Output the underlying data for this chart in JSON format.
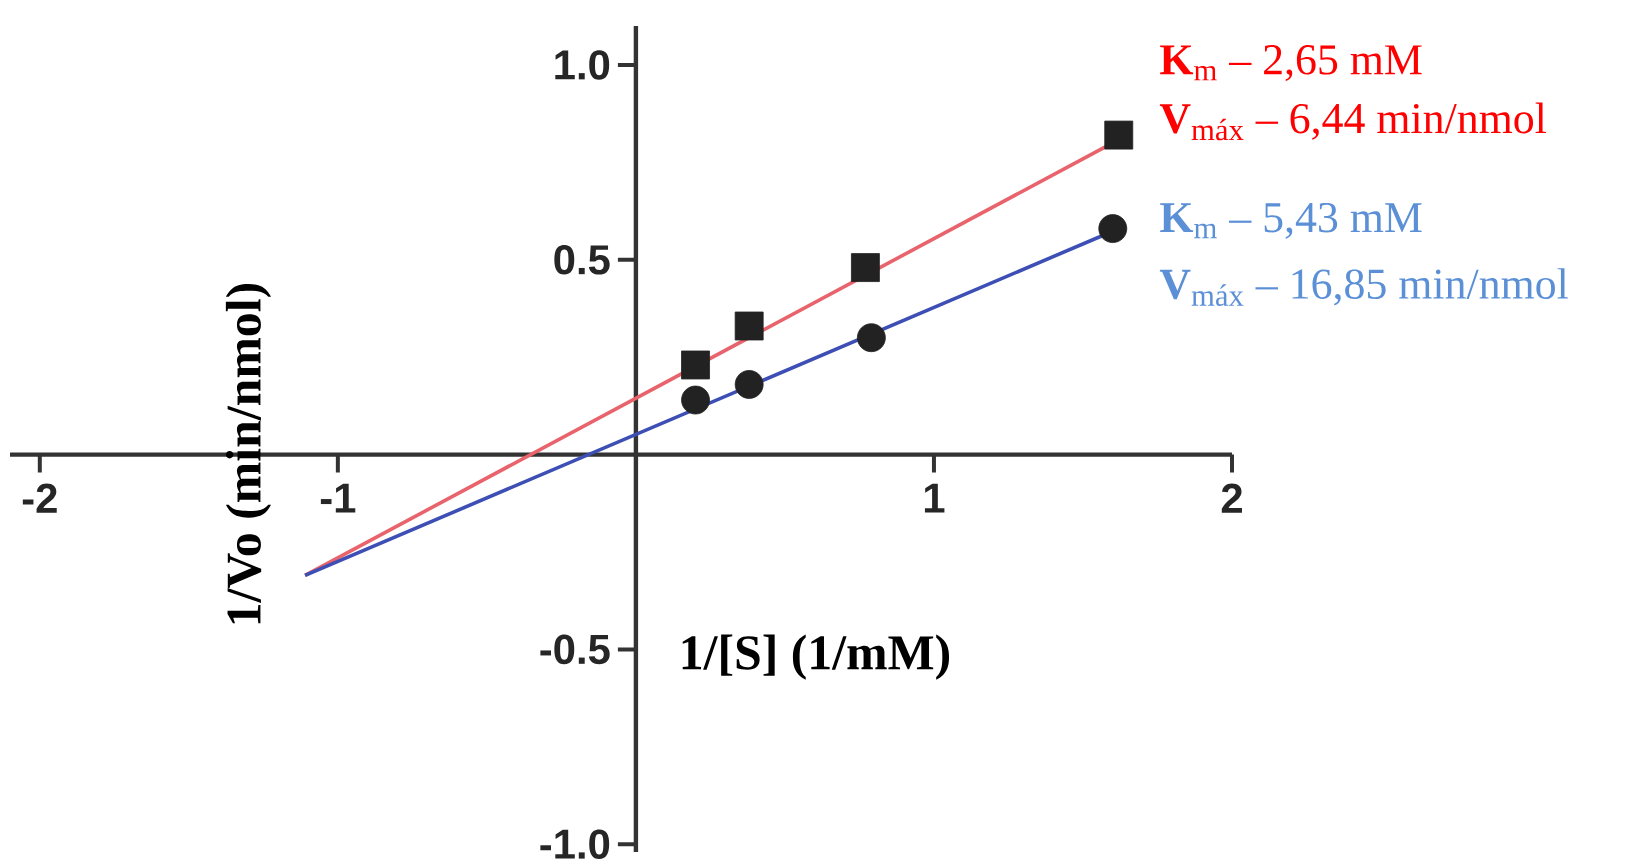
{
  "chart_data": {
    "type": "scatter",
    "xlabel": "1/[S] (1/mM)",
    "ylabel": "1/Vo (min/nmol)",
    "xlim": [
      -2.1,
      2.0
    ],
    "ylim": [
      -1.02,
      1.1
    ],
    "xticks": [
      -2,
      -1,
      1,
      2
    ],
    "yticks": [
      {
        "value": -1,
        "label": "-1.0"
      },
      {
        "value": -0.5,
        "label": "-0.5"
      },
      {
        "value": 0.5,
        "label": "0.5"
      },
      {
        "value": 1,
        "label": "1.0"
      }
    ],
    "grid": false,
    "series": [
      {
        "marker": "square",
        "color": "#222222",
        "x": [
          0.2,
          0.38,
          0.77,
          1.62
        ],
        "values": [
          0.23,
          0.33,
          0.48,
          0.82
        ]
      },
      {
        "marker": "circle",
        "color": "#222222",
        "x": [
          0.2,
          0.38,
          0.79,
          1.6
        ],
        "values": [
          0.14,
          0.18,
          0.3,
          0.58
        ]
      },
      {
        "type": "line",
        "marker": "none",
        "color": "#e8636b",
        "x": [
          -1.11,
          1.6
        ],
        "values": [
          -0.31,
          0.8
        ]
      },
      {
        "type": "line",
        "marker": "none",
        "color": "#3d4fb5",
        "x": [
          -1.11,
          1.59
        ],
        "values": [
          -0.31,
          0.57
        ]
      }
    ],
    "annotations": [
      "**K**$_{m}$ – 2,65 mM",
      "**V**$_{máx}$ – 6,44 min/nmol",
      "**K**$_{m}$ – 5,43 mM",
      "**V**$_{máx}$ – 16,85 min/nmol"
    ]
  }
}
